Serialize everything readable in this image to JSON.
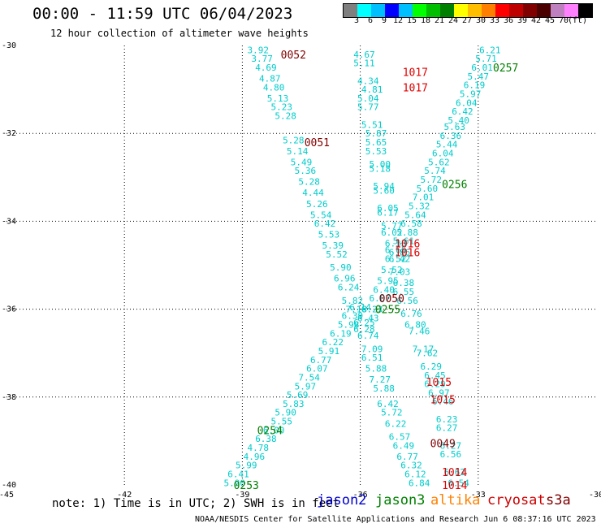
{
  "title": "00:00 - 11:59 UTC 06/04/2023",
  "subtitle": "12 hour collection of altimeter wave heights",
  "legend": {
    "colors": [
      "#7f7f7f",
      "#00ffff",
      "#00bfff",
      "#0000ff",
      "#00bfff",
      "#00ff00",
      "#00bf00",
      "#008000",
      "#ffff00",
      "#ffbf00",
      "#ff8000",
      "#ff0000",
      "#bf0000",
      "#800000",
      "#4b0000",
      "#bf80c0",
      "#ff80ff",
      "#000000"
    ],
    "labels": [
      "3",
      "6",
      "9",
      "12",
      "15",
      "18",
      "21",
      "24",
      "27",
      "30",
      "33",
      "36",
      "39",
      "42",
      "45",
      "70",
      "(ft)"
    ]
  },
  "note": "note: 1) Time is in UTC; 2) SWH is in feet",
  "satellites": [
    {
      "name": "jason2",
      "color": "#0000cc"
    },
    {
      "name": "jason3",
      "color": "#008000"
    },
    {
      "name": "altika",
      "color": "#ff8000"
    },
    {
      "name": "cryosat",
      "color": "#cc0000"
    },
    {
      "name": "s3a",
      "color": "#800000"
    }
  ],
  "credit": "NOAA/NESDIS Center for Satellite Applications and Research   Jun  6 08:37:16 UTC 2023",
  "chart_data": {
    "type": "scatter",
    "xlim": [
      -45,
      -30
    ],
    "ylim": [
      -40,
      -30
    ],
    "x_ticks": [
      "-45",
      "-42",
      "-39",
      "-36",
      "-33",
      "-30"
    ],
    "y_ticks": [
      "-30",
      "-32",
      "-34",
      "-36",
      "-38",
      "-40"
    ],
    "grid": true,
    "point_color": "#00cccc",
    "tracks": [
      {
        "name": "track-a",
        "color": "#00cccc",
        "points": [
          {
            "lon": -39.2,
            "lat": -39.95,
            "v": "5.90"
          },
          {
            "lon": -39.1,
            "lat": -39.75,
            "v": "6.41"
          },
          {
            "lon": -38.9,
            "lat": -39.55,
            "v": "5.99"
          },
          {
            "lon": -38.7,
            "lat": -39.35,
            "v": "4.96"
          },
          {
            "lon": -38.6,
            "lat": -39.15,
            "v": "4.78"
          },
          {
            "lon": -38.4,
            "lat": -38.95,
            "v": "6.38"
          },
          {
            "lon": -38.2,
            "lat": -38.75,
            "v": "6.00"
          },
          {
            "lon": -38.0,
            "lat": -38.55,
            "v": "5.55"
          },
          {
            "lon": -37.9,
            "lat": -38.35,
            "v": "5.90"
          },
          {
            "lon": -37.7,
            "lat": -38.15,
            "v": "5.83"
          },
          {
            "lon": -37.6,
            "lat": -37.95,
            "v": "5.69"
          },
          {
            "lon": -37.4,
            "lat": -37.75,
            "v": "5.97"
          },
          {
            "lon": -37.3,
            "lat": -37.55,
            "v": "7.54"
          },
          {
            "lon": -37.1,
            "lat": -37.35,
            "v": "6.07"
          },
          {
            "lon": -37.0,
            "lat": -37.15,
            "v": "6.77"
          },
          {
            "lon": -36.8,
            "lat": -36.95,
            "v": "5.91"
          },
          {
            "lon": -36.7,
            "lat": -36.75,
            "v": "6.22"
          },
          {
            "lon": -36.5,
            "lat": -36.55,
            "v": "6.19"
          },
          {
            "lon": -36.3,
            "lat": -36.35,
            "v": "5.98"
          },
          {
            "lon": -36.2,
            "lat": -36.15,
            "v": "6.39"
          },
          {
            "lon": -36.0,
            "lat": -35.95,
            "v": "6.14"
          }
        ]
      },
      {
        "name": "track-b",
        "color": "#00cccc",
        "points": [
          {
            "lon": -38.6,
            "lat": -30.1,
            "v": "3.92"
          },
          {
            "lon": -38.5,
            "lat": -30.3,
            "v": "3.77"
          },
          {
            "lon": -38.4,
            "lat": -30.5,
            "v": "4.69"
          },
          {
            "lon": -38.3,
            "lat": -30.75,
            "v": "4.87"
          },
          {
            "lon": -38.2,
            "lat": -30.95,
            "v": "4.80"
          },
          {
            "lon": -38.1,
            "lat": -31.2,
            "v": "5.13"
          },
          {
            "lon": -38.0,
            "lat": -31.4,
            "v": "5.23"
          },
          {
            "lon": -37.9,
            "lat": -31.6,
            "v": "5.28"
          },
          {
            "lon": -37.7,
            "lat": -32.15,
            "v": "5.28"
          },
          {
            "lon": -37.6,
            "lat": -32.4,
            "v": "5.14"
          },
          {
            "lon": -37.5,
            "lat": -32.65,
            "v": "5.49"
          },
          {
            "lon": -37.4,
            "lat": -32.85,
            "v": "5.36"
          },
          {
            "lon": -37.3,
            "lat": -33.1,
            "v": "5.28"
          },
          {
            "lon": -37.2,
            "lat": -33.35,
            "v": "4.44"
          },
          {
            "lon": -37.1,
            "lat": -33.6,
            "v": "5.26"
          },
          {
            "lon": -37.0,
            "lat": -33.85,
            "v": "5.54"
          },
          {
            "lon": -36.9,
            "lat": -34.05,
            "v": "6.42"
          },
          {
            "lon": -36.8,
            "lat": -34.3,
            "v": "5.53"
          },
          {
            "lon": -36.7,
            "lat": -34.55,
            "v": "5.39"
          },
          {
            "lon": -36.6,
            "lat": -34.75,
            "v": "5.52"
          },
          {
            "lon": -36.5,
            "lat": -35.05,
            "v": "5.90"
          },
          {
            "lon": -36.4,
            "lat": -35.3,
            "v": "6.96"
          },
          {
            "lon": -36.3,
            "lat": -35.5,
            "v": "6.24"
          },
          {
            "lon": -36.2,
            "lat": -35.8,
            "v": "5.82"
          },
          {
            "lon": -36.1,
            "lat": -36.0,
            "v": "7.18"
          },
          {
            "lon": -35.9,
            "lat": -36.3,
            "v": "6.25"
          },
          {
            "lon": -35.8,
            "lat": -36.6,
            "v": "6.74"
          },
          {
            "lon": -35.7,
            "lat": -36.9,
            "v": "7.09"
          },
          {
            "lon": -35.7,
            "lat": -37.1,
            "v": "6.51"
          },
          {
            "lon": -35.6,
            "lat": -37.35,
            "v": "5.88"
          },
          {
            "lon": -35.5,
            "lat": -37.6,
            "v": "7.27"
          },
          {
            "lon": -35.4,
            "lat": -37.8,
            "v": "5.88"
          },
          {
            "lon": -35.3,
            "lat": -38.15,
            "v": "6.42"
          },
          {
            "lon": -35.2,
            "lat": -38.35,
            "v": "5.72"
          },
          {
            "lon": -35.1,
            "lat": -38.6,
            "v": "6.22"
          },
          {
            "lon": -35.0,
            "lat": -38.9,
            "v": "6.57"
          },
          {
            "lon": -34.9,
            "lat": -39.1,
            "v": "6.49"
          },
          {
            "lon": -34.8,
            "lat": -39.35,
            "v": "6.77"
          },
          {
            "lon": -34.7,
            "lat": -39.55,
            "v": "6.32"
          },
          {
            "lon": -34.6,
            "lat": -39.75,
            "v": "6.12"
          },
          {
            "lon": -34.5,
            "lat": -39.95,
            "v": "6.84"
          }
        ]
      },
      {
        "name": "track-c",
        "color": "#00cccc",
        "points": [
          {
            "lon": -35.9,
            "lat": -30.2,
            "v": "4.67"
          },
          {
            "lon": -35.9,
            "lat": -30.4,
            "v": "5.11"
          },
          {
            "lon": -35.8,
            "lat": -30.8,
            "v": "4.34"
          },
          {
            "lon": -35.7,
            "lat": -31.0,
            "v": "4.81"
          },
          {
            "lon": -35.8,
            "lat": -31.2,
            "v": "5.04"
          },
          {
            "lon": -35.8,
            "lat": -31.4,
            "v": "5.77"
          },
          {
            "lon": -35.7,
            "lat": -31.8,
            "v": "5.51"
          },
          {
            "lon": -35.6,
            "lat": -32.0,
            "v": "5.87"
          },
          {
            "lon": -35.6,
            "lat": -32.2,
            "v": "5.65"
          },
          {
            "lon": -35.6,
            "lat": -32.4,
            "v": "5.53"
          },
          {
            "lon": -35.5,
            "lat": -32.7,
            "v": "5.00"
          },
          {
            "lon": -35.5,
            "lat": -32.8,
            "v": "5.18"
          },
          {
            "lon": -35.4,
            "lat": -33.2,
            "v": "5.94"
          },
          {
            "lon": -35.4,
            "lat": -33.3,
            "v": "5.60"
          },
          {
            "lon": -35.3,
            "lat": -33.7,
            "v": "6.05"
          },
          {
            "lon": -35.3,
            "lat": -33.8,
            "v": "6.17"
          },
          {
            "lon": -35.2,
            "lat": -34.1,
            "v": "5.77"
          },
          {
            "lon": -35.2,
            "lat": -34.25,
            "v": "6.02"
          },
          {
            "lon": -35.1,
            "lat": -34.5,
            "v": "6.33"
          },
          {
            "lon": -35.1,
            "lat": -34.65,
            "v": "6.65"
          },
          {
            "lon": -35.0,
            "lat": -34.85,
            "v": "6.42"
          },
          {
            "lon": -35.0,
            "lat": -35.15,
            "v": "7.03"
          },
          {
            "lon": -34.9,
            "lat": -35.4,
            "v": "6.38"
          },
          {
            "lon": -34.9,
            "lat": -35.6,
            "v": "6.55"
          },
          {
            "lon": -34.8,
            "lat": -35.8,
            "v": "6.56"
          },
          {
            "lon": -34.7,
            "lat": -36.1,
            "v": "6.76"
          },
          {
            "lon": -34.6,
            "lat": -36.35,
            "v": "6.80"
          },
          {
            "lon": -34.5,
            "lat": -36.5,
            "v": "7.46"
          },
          {
            "lon": -34.4,
            "lat": -36.9,
            "v": "7.17"
          },
          {
            "lon": -34.3,
            "lat": -37.0,
            "v": "7.62"
          },
          {
            "lon": -34.2,
            "lat": -37.3,
            "v": "6.29"
          },
          {
            "lon": -34.1,
            "lat": -37.5,
            "v": "6.45"
          },
          {
            "lon": -34.1,
            "lat": -37.7,
            "v": "6.29"
          },
          {
            "lon": -34.0,
            "lat": -37.9,
            "v": "6.97"
          },
          {
            "lon": -33.9,
            "lat": -38.1,
            "v": "6.46"
          },
          {
            "lon": -33.8,
            "lat": -38.5,
            "v": "6.23"
          },
          {
            "lon": -33.8,
            "lat": -38.7,
            "v": "6.27"
          },
          {
            "lon": -33.7,
            "lat": -39.1,
            "v": "6.27"
          },
          {
            "lon": -33.7,
            "lat": -39.3,
            "v": "6.56"
          },
          {
            "lon": -33.6,
            "lat": -39.7,
            "v": "6.62"
          },
          {
            "lon": -33.5,
            "lat": -39.95,
            "v": "6.54"
          }
        ]
      },
      {
        "name": "track-d",
        "color": "#00cccc",
        "points": [
          {
            "lon": -32.7,
            "lat": -30.1,
            "v": "6.21"
          },
          {
            "lon": -32.8,
            "lat": -30.3,
            "v": "5.71"
          },
          {
            "lon": -32.9,
            "lat": -30.5,
            "v": "6.01"
          },
          {
            "lon": -33.0,
            "lat": -30.7,
            "v": "5.47"
          },
          {
            "lon": -33.1,
            "lat": -30.9,
            "v": "6.19"
          },
          {
            "lon": -33.2,
            "lat": -31.1,
            "v": "5.97"
          },
          {
            "lon": -33.3,
            "lat": -31.3,
            "v": "6.04"
          },
          {
            "lon": -33.4,
            "lat": -31.5,
            "v": "6.42"
          },
          {
            "lon": -33.5,
            "lat": -31.7,
            "v": "5.40"
          },
          {
            "lon": -33.6,
            "lat": -31.85,
            "v": "5.63"
          },
          {
            "lon": -33.7,
            "lat": -32.05,
            "v": "6.36"
          },
          {
            "lon": -33.8,
            "lat": -32.25,
            "v": "5.44"
          },
          {
            "lon": -33.9,
            "lat": -32.45,
            "v": "6.04"
          },
          {
            "lon": -34.0,
            "lat": -32.65,
            "v": "5.62"
          },
          {
            "lon": -34.1,
            "lat": -32.85,
            "v": "5.74"
          },
          {
            "lon": -34.2,
            "lat": -33.05,
            "v": "5.72"
          },
          {
            "lon": -34.3,
            "lat": -33.25,
            "v": "5.60"
          },
          {
            "lon": -34.4,
            "lat": -33.45,
            "v": "7.01"
          },
          {
            "lon": -34.5,
            "lat": -33.65,
            "v": "5.32"
          },
          {
            "lon": -34.6,
            "lat": -33.85,
            "v": "5.64"
          },
          {
            "lon": -34.7,
            "lat": -34.05,
            "v": "6.58"
          },
          {
            "lon": -34.8,
            "lat": -34.25,
            "v": "5.88"
          },
          {
            "lon": -34.9,
            "lat": -34.45,
            "v": "5.61"
          },
          {
            "lon": -35.0,
            "lat": -34.7,
            "v": "6.86"
          },
          {
            "lon": -35.1,
            "lat": -34.85,
            "v": "6.52"
          },
          {
            "lon": -35.2,
            "lat": -35.1,
            "v": "5.52"
          },
          {
            "lon": -35.3,
            "lat": -35.35,
            "v": "5.95"
          },
          {
            "lon": -35.4,
            "lat": -35.55,
            "v": "6.40"
          },
          {
            "lon": -35.5,
            "lat": -35.75,
            "v": "6.07"
          },
          {
            "lon": -35.7,
            "lat": -36.0,
            "v": "6.23"
          },
          {
            "lon": -35.8,
            "lat": -36.2,
            "v": "6.43"
          },
          {
            "lon": -35.9,
            "lat": -36.45,
            "v": "6.28"
          }
        ]
      }
    ],
    "time_labels": [
      {
        "lon": -37.7,
        "lat": -30.2,
        "t": "0052",
        "color": "#800000"
      },
      {
        "lon": -34.6,
        "lat": -30.6,
        "t": "1017",
        "color": "#e00000"
      },
      {
        "lon": -34.6,
        "lat": -30.95,
        "t": "1017",
        "color": "#e00000"
      },
      {
        "lon": -32.3,
        "lat": -30.5,
        "t": "0257",
        "color": "#008000"
      },
      {
        "lon": -37.1,
        "lat": -32.2,
        "t": "0051",
        "color": "#800000"
      },
      {
        "lon": -33.6,
        "lat": -33.15,
        "t": "0256",
        "color": "#008000"
      },
      {
        "lon": -34.8,
        "lat": -34.5,
        "t": "1016",
        "color": "#e00000"
      },
      {
        "lon": -34.8,
        "lat": -34.7,
        "t": "1016",
        "color": "#e00000"
      },
      {
        "lon": -35.2,
        "lat": -35.75,
        "t": "0050",
        "color": "#800000"
      },
      {
        "lon": -35.3,
        "lat": -36.0,
        "t": "0255",
        "color": "#008000"
      },
      {
        "lon": -34.0,
        "lat": -37.65,
        "t": "1015",
        "color": "#e00000"
      },
      {
        "lon": -33.9,
        "lat": -38.05,
        "t": "1015",
        "color": "#e00000"
      },
      {
        "lon": -33.9,
        "lat": -39.05,
        "t": "0049",
        "color": "#800000"
      },
      {
        "lon": -38.3,
        "lat": -38.75,
        "t": "0254",
        "color": "#008000"
      },
      {
        "lon": -33.6,
        "lat": -39.7,
        "t": "1014",
        "color": "#e00000"
      },
      {
        "lon": -33.6,
        "lat": -40.0,
        "t": "1014",
        "color": "#e00000"
      },
      {
        "lon": -38.9,
        "lat": -40.0,
        "t": "0253",
        "color": "#008000"
      }
    ]
  }
}
